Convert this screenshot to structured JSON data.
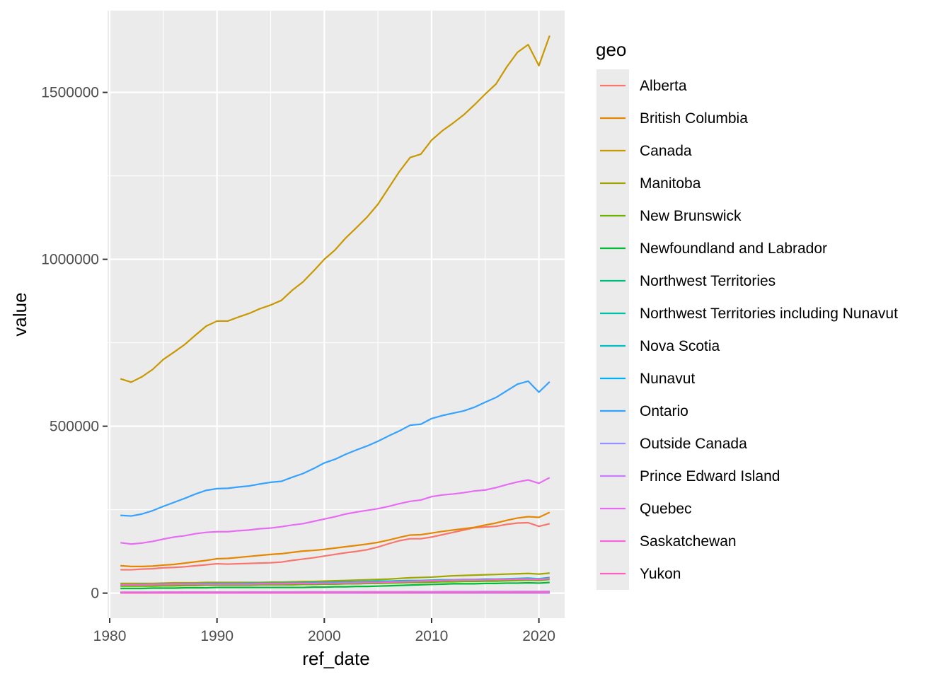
{
  "chart_data": {
    "type": "line",
    "xlabel": "ref_date",
    "ylabel": "value",
    "xlim": [
      1979.8,
      2022.4
    ],
    "ylim": [
      -75000,
      1745000
    ],
    "x_ticks": [
      1980,
      1990,
      2000,
      2010,
      2020
    ],
    "x_tick_labels": [
      "1980",
      "1990",
      "2000",
      "2010",
      "2020"
    ],
    "y_ticks": [
      0,
      500000,
      1000000,
      1500000
    ],
    "y_tick_labels": [
      "0",
      "500000",
      "1000000",
      "1500000"
    ],
    "grid": true,
    "panel_background": "#ebebeb",
    "legend": {
      "title": "geo",
      "position": "right"
    },
    "x": [
      1981,
      1982,
      1983,
      1984,
      1985,
      1986,
      1987,
      1988,
      1989,
      1990,
      1991,
      1992,
      1993,
      1994,
      1995,
      1996,
      1997,
      1998,
      1999,
      2000,
      2001,
      2002,
      2003,
      2004,
      2005,
      2006,
      2007,
      2008,
      2009,
      2010,
      2011,
      2012,
      2013,
      2014,
      2015,
      2016,
      2017,
      2018,
      2019,
      2020,
      2021
    ],
    "series": [
      {
        "name": "Alberta",
        "color": "#F8766D",
        "values": [
          70000,
          70000,
          72000,
          73000,
          76000,
          77000,
          79000,
          82000,
          85000,
          88000,
          87000,
          88000,
          89000,
          90000,
          91000,
          93000,
          98000,
          102000,
          106000,
          111000,
          116000,
          121000,
          125000,
          130000,
          138000,
          148000,
          157000,
          163000,
          163000,
          168000,
          175000,
          182000,
          189000,
          196000,
          198000,
          200000,
          206000,
          210000,
          211000,
          200000,
          208000
        ]
      },
      {
        "name": "British Columbia",
        "color": "#E58700",
        "values": [
          82000,
          80000,
          80000,
          81000,
          84000,
          86000,
          90000,
          94000,
          98000,
          103000,
          104000,
          107000,
          110000,
          113000,
          116000,
          118000,
          122000,
          126000,
          128000,
          131000,
          135000,
          139000,
          143000,
          147000,
          152000,
          159000,
          167000,
          174000,
          175000,
          180000,
          185000,
          189000,
          193000,
          197000,
          204000,
          210000,
          218000,
          225000,
          229000,
          227000,
          242000
        ]
      },
      {
        "name": "Canada",
        "color": "#C99800",
        "values": [
          642000,
          632000,
          648000,
          670000,
          700000,
          722000,
          745000,
          773000,
          800000,
          815000,
          815000,
          827000,
          838000,
          852000,
          863000,
          877000,
          907000,
          932000,
          965000,
          1000000,
          1028000,
          1064000,
          1095000,
          1127000,
          1165000,
          1214000,
          1263000,
          1305000,
          1315000,
          1357000,
          1385000,
          1408000,
          1433000,
          1463000,
          1495000,
          1525000,
          1576000,
          1620000,
          1643000,
          1580000,
          1670000
        ]
      },
      {
        "name": "Manitoba",
        "color": "#A3A500",
        "values": [
          29000,
          29000,
          29000,
          29000,
          30000,
          31000,
          31000,
          31000,
          32000,
          32000,
          32000,
          32000,
          32000,
          32000,
          33000,
          33000,
          34000,
          35000,
          35000,
          36000,
          37000,
          38000,
          39000,
          40000,
          41000,
          42000,
          44000,
          46000,
          47000,
          48000,
          50000,
          52000,
          53000,
          54000,
          55000,
          56000,
          57000,
          58000,
          59000,
          57000,
          60000
        ]
      },
      {
        "name": "New Brunswick",
        "color": "#6BB100",
        "values": [
          21000,
          21000,
          21000,
          21000,
          22000,
          22000,
          23000,
          23000,
          24000,
          24000,
          24000,
          24000,
          24000,
          25000,
          25000,
          25000,
          25000,
          26000,
          26000,
          27000,
          27000,
          28000,
          28000,
          29000,
          29000,
          30000,
          31000,
          32000,
          32000,
          33000,
          34000,
          34000,
          35000,
          35000,
          36000,
          36000,
          37000,
          38000,
          39000,
          38000,
          41000
        ]
      },
      {
        "name": "Newfoundland and Labrador",
        "color": "#00BA38",
        "values": [
          14000,
          14000,
          14000,
          15000,
          15000,
          15000,
          16000,
          16000,
          16000,
          17000,
          17000,
          17000,
          17000,
          17000,
          17000,
          17000,
          17000,
          17000,
          18000,
          18000,
          19000,
          19000,
          20000,
          20000,
          21000,
          22000,
          23000,
          24000,
          25000,
          26000,
          27000,
          28000,
          28000,
          28000,
          29000,
          29000,
          30000,
          30000,
          31000,
          30000,
          32000
        ]
      },
      {
        "name": "Northwest Territories",
        "color": "#00BF7D",
        "values": [
          1500,
          1500,
          1500,
          1500,
          1600,
          1600,
          1600,
          1700,
          1700,
          1800,
          1800,
          1800,
          1800,
          1900,
          1900,
          1900,
          2000,
          2000,
          2100,
          2200,
          2300,
          2400,
          2500,
          2600,
          2700,
          2800,
          2900,
          3000,
          3000,
          3100,
          3200,
          3200,
          3300,
          3300,
          3400,
          3400,
          3500,
          3500,
          3600,
          3500,
          3700
        ]
      },
      {
        "name": "Northwest Territories including Nunavut",
        "color": "#00C1A3",
        "values": [
          2000,
          2000,
          2000,
          2000,
          2100,
          2100,
          2200,
          2200,
          2300,
          2300,
          2300,
          2300,
          2400,
          2400,
          2400,
          2500,
          2500,
          2600,
          2600,
          2700,
          2700,
          2800,
          2800,
          2900,
          2900,
          3000,
          3000,
          3100,
          3100,
          3200,
          3200,
          3300,
          3300,
          3400,
          3400,
          3500,
          3500,
          3600,
          3600,
          3500,
          3700
        ]
      },
      {
        "name": "Nova Scotia",
        "color": "#00BFC4",
        "values": [
          25000,
          25000,
          26000,
          26000,
          27000,
          27000,
          28000,
          28000,
          29000,
          29000,
          29000,
          29000,
          30000,
          30000,
          30000,
          30000,
          31000,
          31000,
          32000,
          32000,
          33000,
          34000,
          34000,
          35000,
          36000,
          36000,
          37000,
          38000,
          38000,
          39000,
          40000,
          40000,
          41000,
          41000,
          42000,
          42000,
          43000,
          44000,
          45000,
          43000,
          47000
        ]
      },
      {
        "name": "Nunavut",
        "color": "#00B0F6",
        "values": [
          1000,
          1000,
          1000,
          1000,
          1000,
          1000,
          1000,
          1000,
          1000,
          1100,
          1100,
          1100,
          1100,
          1200,
          1200,
          1200,
          1200,
          1300,
          1300,
          1300,
          1400,
          1400,
          1500,
          1500,
          1600,
          1600,
          1700,
          1700,
          1800,
          1800,
          1900,
          1900,
          2000,
          2000,
          2100,
          2100,
          2200,
          2200,
          2300,
          2200,
          2400
        ]
      },
      {
        "name": "Ontario",
        "color": "#35A2FF",
        "values": [
          233000,
          231000,
          237000,
          247000,
          260000,
          272000,
          284000,
          297000,
          308000,
          313000,
          314000,
          318000,
          321000,
          327000,
          332000,
          335000,
          347000,
          358000,
          373000,
          390000,
          401000,
          416000,
          429000,
          441000,
          455000,
          471000,
          486000,
          503000,
          506000,
          523000,
          532000,
          539000,
          546000,
          557000,
          572000,
          586000,
          606000,
          626000,
          635000,
          602000,
          633000
        ]
      },
      {
        "name": "Outside Canada",
        "color": "#9590FF",
        "values": [
          500,
          500,
          500,
          500,
          500,
          500,
          500,
          500,
          500,
          500,
          500,
          500,
          500,
          500,
          500,
          500,
          500,
          500,
          500,
          500,
          500,
          500,
          500,
          500,
          500,
          500,
          500,
          500,
          500,
          500,
          500,
          500,
          500,
          500,
          500,
          500,
          500,
          500,
          500,
          500,
          500
        ]
      },
      {
        "name": "Prince Edward Island",
        "color": "#C77CFF",
        "values": [
          3000,
          3000,
          3000,
          3000,
          3100,
          3100,
          3200,
          3200,
          3300,
          3300,
          3300,
          3300,
          3400,
          3400,
          3400,
          3500,
          3500,
          3600,
          3600,
          3700,
          3700,
          3800,
          3800,
          3900,
          3900,
          4000,
          4100,
          4200,
          4200,
          4300,
          4400,
          4500,
          4500,
          4600,
          4700,
          4800,
          4900,
          5000,
          5100,
          5000,
          5300
        ]
      },
      {
        "name": "Quebec",
        "color": "#E76BF3",
        "values": [
          151000,
          147000,
          150000,
          155000,
          162000,
          168000,
          172000,
          178000,
          182000,
          184000,
          184000,
          187000,
          189000,
          193000,
          195000,
          199000,
          204000,
          208000,
          215000,
          222000,
          229000,
          237000,
          243000,
          248000,
          253000,
          260000,
          268000,
          275000,
          279000,
          289000,
          294000,
          297000,
          301000,
          306000,
          309000,
          316000,
          325000,
          333000,
          339000,
          329000,
          346000
        ]
      },
      {
        "name": "Saskatchewan",
        "color": "#FA62DB",
        "values": [
          25000,
          25000,
          25000,
          26000,
          26000,
          27000,
          27000,
          27000,
          27000,
          27000,
          27000,
          27000,
          27000,
          28000,
          28000,
          28000,
          29000,
          29000,
          29000,
          30000,
          30000,
          31000,
          31000,
          32000,
          32000,
          33000,
          34000,
          35000,
          36000,
          37000,
          38000,
          39000,
          40000,
          40000,
          40000,
          41000,
          41000,
          42000,
          42000,
          41000,
          44000
        ]
      },
      {
        "name": "Yukon",
        "color": "#FF62BC",
        "values": [
          1000,
          1000,
          1000,
          1000,
          1000,
          1000,
          1100,
          1100,
          1100,
          1100,
          1100,
          1200,
          1200,
          1200,
          1200,
          1200,
          1300,
          1300,
          1300,
          1300,
          1400,
          1400,
          1400,
          1500,
          1500,
          1500,
          1600,
          1600,
          1700,
          1700,
          1800,
          1800,
          1800,
          1900,
          1900,
          2000,
          2000,
          2100,
          2100,
          2000,
          2200
        ]
      }
    ]
  }
}
